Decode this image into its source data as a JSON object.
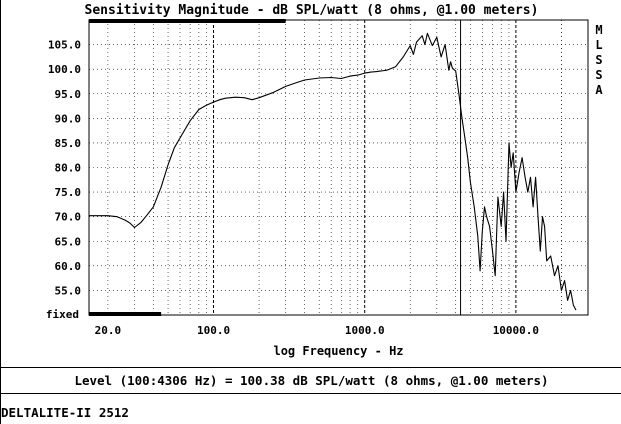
{
  "window": {
    "title": "Sensitivity Magnitude - dB SPL/watt (8 ohms, @1.00 meters)",
    "status_line": "Level (100:4306 Hz) = 100.38 dB SPL/watt (8 ohms, @1.00 meters)",
    "device_label": "DELTALITE-II 2512",
    "side_label": [
      "M",
      "L",
      "S",
      "S",
      "A"
    ]
  },
  "chart_data": {
    "type": "line",
    "title": "Sensitivity Magnitude - dB SPL/watt (8 ohms, @1.00 meters)",
    "xlabel": "log Frequency - Hz",
    "ylabel": "",
    "x_scale": "log",
    "xlim": [
      15,
      30000
    ],
    "ylim": [
      50,
      110
    ],
    "x_ticks": [
      {
        "value": 20,
        "label": "20.0"
      },
      {
        "value": 100,
        "label": "100.0"
      },
      {
        "value": 1000,
        "label": "1000.0"
      },
      {
        "value": 10000,
        "label": "10000.0"
      }
    ],
    "y_ticks": [
      {
        "value": 105,
        "label": "105.0"
      },
      {
        "value": 100,
        "label": "100.0"
      },
      {
        "value": 95,
        "label": "95.0"
      },
      {
        "value": 90,
        "label": "90.0"
      },
      {
        "value": 85,
        "label": "85.0"
      },
      {
        "value": 80,
        "label": "80.0"
      },
      {
        "value": 75,
        "label": "75.0"
      },
      {
        "value": 70,
        "label": "70.0"
      },
      {
        "value": 65,
        "label": "65.0"
      },
      {
        "value": 60,
        "label": "60.0"
      },
      {
        "value": 55,
        "label": "55.0"
      }
    ],
    "bottom_label": "fixed",
    "grid": true,
    "series": [
      {
        "x": [
          15,
          17,
          20,
          23,
          26,
          28,
          30,
          33,
          36,
          40,
          45,
          50,
          55,
          60,
          70,
          80,
          90,
          100,
          110,
          120,
          140,
          160,
          180,
          200,
          250,
          300,
          350,
          400,
          500,
          600,
          700,
          800,
          900,
          1000,
          1100,
          1200,
          1400,
          1600,
          1800,
          2000,
          2100,
          2200,
          2400,
          2500,
          2600,
          2800,
          3000,
          3200,
          3400,
          3600,
          3700,
          3800,
          4000,
          4200,
          4400,
          4600,
          4800,
          5000,
          5300,
          5600,
          5800,
          6000,
          6200,
          6400,
          6700,
          7000,
          7300,
          7600,
          8000,
          8300,
          8600,
          9000,
          9300,
          9600,
          10000,
          10500,
          11000,
          11500,
          12000,
          12500,
          13000,
          13500,
          14000,
          14500,
          15000,
          15500,
          16000,
          17000,
          18000,
          19000,
          20000,
          21000,
          22000,
          23000,
          24000,
          25000
        ],
        "y": [
          70.2,
          70.2,
          70.2,
          70,
          69.3,
          68.7,
          67.8,
          68.8,
          70.2,
          72,
          76,
          80.5,
          84,
          86,
          89.5,
          91.8,
          92.7,
          93.3,
          93.8,
          94.1,
          94.3,
          94.2,
          93.8,
          94.2,
          95.3,
          96.5,
          97.2,
          97.8,
          98.2,
          98.3,
          98.1,
          98.6,
          98.8,
          99.2,
          99.4,
          99.5,
          99.8,
          100.5,
          102.5,
          104.8,
          103,
          105.5,
          106.8,
          105,
          107.3,
          104.8,
          106.5,
          102.5,
          105,
          99.8,
          101.5,
          100.2,
          99.6,
          95,
          90,
          86,
          82,
          77,
          72,
          66,
          59,
          67,
          72,
          70,
          68,
          63,
          58,
          74,
          68,
          75,
          65,
          85,
          80,
          83,
          75,
          79,
          82,
          78,
          75,
          78,
          72,
          78,
          70,
          63,
          70,
          68,
          61,
          62,
          58,
          60,
          55,
          57,
          53,
          55,
          52,
          51
        ]
      }
    ]
  }
}
